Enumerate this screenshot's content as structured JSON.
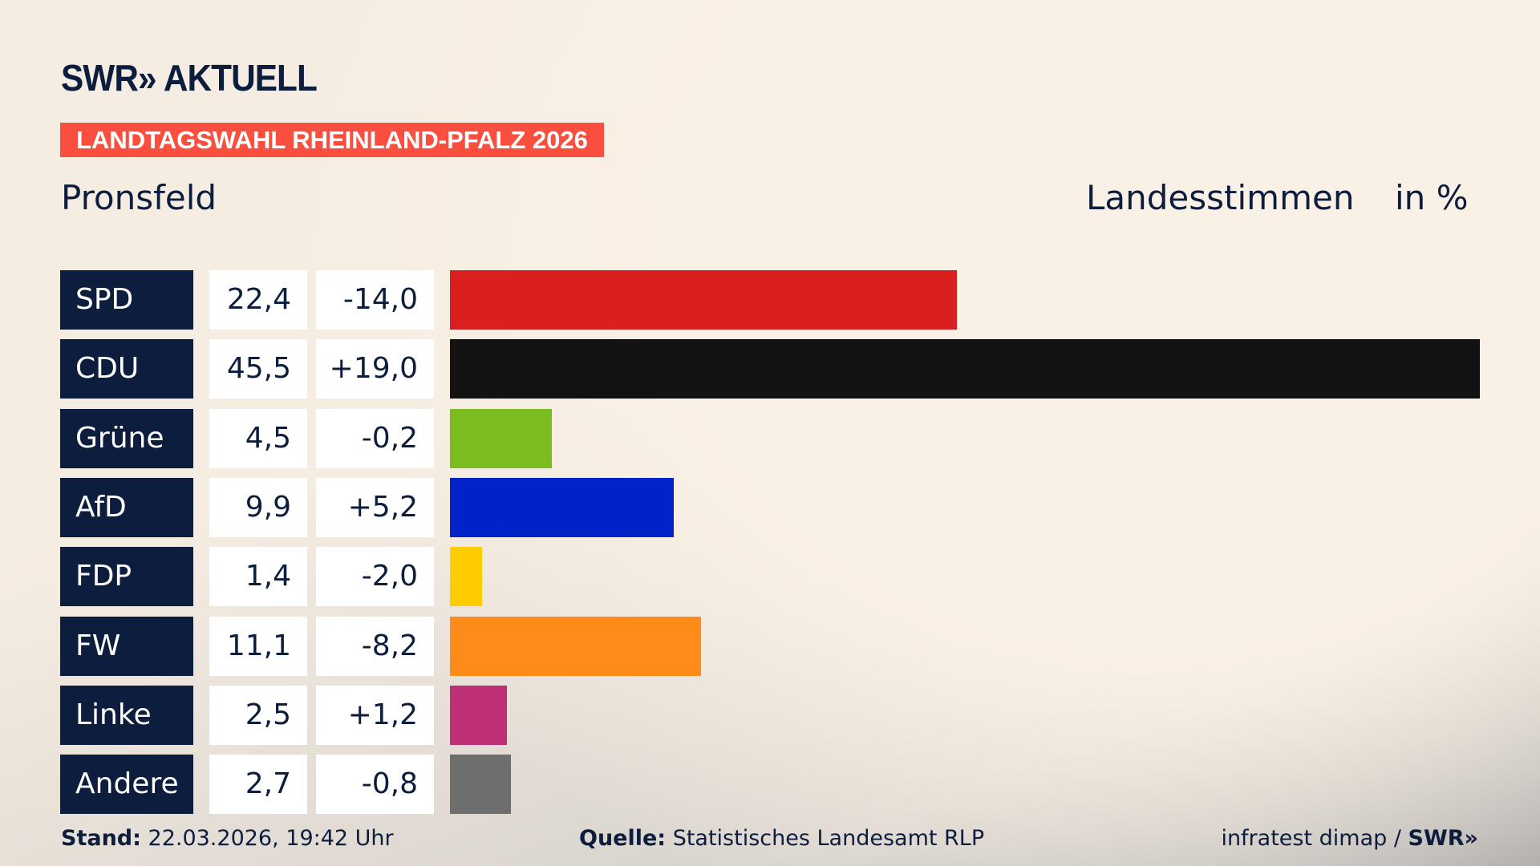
{
  "header": {
    "logo": "SWR» AKTUELL",
    "banner": "LANDTAGSWAHL RHEINLAND-PFALZ 2026",
    "place": "Pronsfeld",
    "col_label": "Landesstimmen",
    "unit": "in %"
  },
  "chart_data": {
    "type": "bar",
    "orientation": "horizontal",
    "title": "Pronsfeld",
    "ylabel": "Landesstimmen in %",
    "categories": [
      "SPD",
      "CDU",
      "Grüne",
      "AfD",
      "FDP",
      "FW",
      "Linke",
      "Andere"
    ],
    "values": [
      22.4,
      45.5,
      4.5,
      9.9,
      1.4,
      11.1,
      2.5,
      2.7
    ],
    "value_labels": [
      "22,4",
      "45,5",
      "4,5",
      "9,9",
      "1,4",
      "11,1",
      "2,5",
      "2,7"
    ],
    "diff_labels": [
      "-14,0",
      "+19,0",
      "-0,2",
      "+5,2",
      "-2,0",
      "-8,2",
      "+1,2",
      "-0,8"
    ],
    "colors": [
      "#d91f20",
      "#121212",
      "#7bbd1e",
      "#0022c8",
      "#ffcc00",
      "#ff8c1a",
      "#be3075",
      "#6e6e6e"
    ],
    "xlim": [
      0,
      45.5
    ]
  },
  "footer": {
    "stand_label": "Stand:",
    "stand": "22.03.2026, 19:42 Uhr",
    "source_label": "Quelle:",
    "source": "Statistisches Landesamt RLP",
    "credit": "infratest dimap / ",
    "credit_logo": "SWR»"
  }
}
